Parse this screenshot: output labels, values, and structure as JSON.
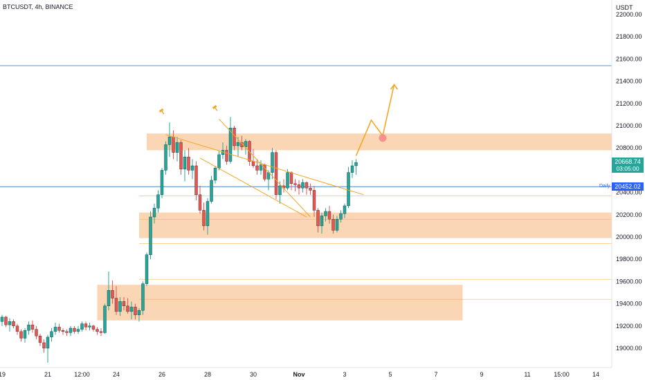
{
  "symbol_title": "BTCUSDT, 4h, BINANCE",
  "currency": "USDT",
  "current_price": {
    "value": "20668.74",
    "countdown": "03:05:00",
    "color": "#26a69a"
  },
  "daily_level": {
    "value": "20452.02",
    "label": "Daily",
    "color": "#2962ff"
  },
  "colors": {
    "bull": "#26a69a",
    "bear": "#ef5350",
    "zone_fill": "#f9c89b",
    "drawing": "#f5a623",
    "level_line": "#6a9fd8",
    "target_dot": "#f48b8b"
  },
  "chart_data": {
    "type": "candlestick",
    "timeframe": "4h",
    "y_axis": {
      "ticks": [
        "22000.00",
        "21800.00",
        "21600.00",
        "21400.00",
        "21200.00",
        "21000.00",
        "20800.00",
        "20600.00",
        "20400.00",
        "20200.00",
        "20000.00",
        "19800.00",
        "19600.00",
        "19400.00",
        "19200.00",
        "19000.00"
      ],
      "range": [
        18830,
        22100
      ]
    },
    "x_axis": {
      "tick_labels": [
        {
          "label": "19",
          "bar": 0,
          "bold": false
        },
        {
          "label": "21",
          "bar": 12,
          "bold": false
        },
        {
          "label": "12:00",
          "bar": 21,
          "bold": false
        },
        {
          "label": "24",
          "bar": 30,
          "bold": false
        },
        {
          "label": "26",
          "bar": 42,
          "bold": false
        },
        {
          "label": "28",
          "bar": 54,
          "bold": false
        },
        {
          "label": "30",
          "bar": 66,
          "bold": false
        },
        {
          "label": "Nov",
          "bar": 78,
          "bold": true
        },
        {
          "label": "3",
          "bar": 90,
          "bold": false
        },
        {
          "label": "5",
          "bar": 102,
          "bold": false
        },
        {
          "label": "7",
          "bar": 114,
          "bold": false
        },
        {
          "label": "9",
          "bar": 126,
          "bold": false
        },
        {
          "label": "11",
          "bar": 138,
          "bold": false
        },
        {
          "label": "15:00",
          "bar": 147,
          "bold": false
        },
        {
          "label": "14",
          "bar": 156,
          "bold": false
        }
      ]
    },
    "candles": [
      [
        19240,
        19300,
        19200,
        19280
      ],
      [
        19280,
        19290,
        19190,
        19210
      ],
      [
        19210,
        19270,
        19150,
        19240
      ],
      [
        19240,
        19260,
        19180,
        19200
      ],
      [
        19200,
        19220,
        19120,
        19150
      ],
      [
        19150,
        19170,
        19060,
        19090
      ],
      [
        19090,
        19180,
        19050,
        19160
      ],
      [
        19160,
        19240,
        19120,
        19210
      ],
      [
        19210,
        19250,
        19140,
        19170
      ],
      [
        19170,
        19200,
        19080,
        19110
      ],
      [
        19110,
        19130,
        19020,
        19050
      ],
      [
        19050,
        19080,
        18960,
        19000
      ],
      [
        19000,
        19120,
        18870,
        19100
      ],
      [
        19100,
        19180,
        19060,
        19150
      ],
      [
        19150,
        19230,
        19120,
        19190
      ],
      [
        19190,
        19220,
        19140,
        19160
      ],
      [
        19160,
        19180,
        19120,
        19150
      ],
      [
        19150,
        19170,
        19110,
        19140
      ],
      [
        19140,
        19200,
        19110,
        19180
      ],
      [
        19180,
        19200,
        19130,
        19150
      ],
      [
        19150,
        19200,
        19130,
        19170
      ],
      [
        19170,
        19240,
        19150,
        19220
      ],
      [
        19220,
        19240,
        19160,
        19190
      ],
      [
        19190,
        19230,
        19160,
        19200
      ],
      [
        19200,
        19210,
        19150,
        19170
      ],
      [
        19170,
        19190,
        19120,
        19150
      ],
      [
        19150,
        19180,
        19110,
        19140
      ],
      [
        19140,
        19400,
        19130,
        19380
      ],
      [
        19380,
        19690,
        19340,
        19520
      ],
      [
        19520,
        19610,
        19400,
        19450
      ],
      [
        19450,
        19560,
        19300,
        19330
      ],
      [
        19330,
        19460,
        19290,
        19420
      ],
      [
        19420,
        19460,
        19340,
        19380
      ],
      [
        19380,
        19450,
        19310,
        19330
      ],
      [
        19330,
        19420,
        19260,
        19370
      ],
      [
        19370,
        19400,
        19260,
        19300
      ],
      [
        19300,
        19360,
        19240,
        19340
      ],
      [
        19340,
        19600,
        19300,
        19580
      ],
      [
        19580,
        19860,
        19560,
        19840
      ],
      [
        19840,
        20230,
        19800,
        20180
      ],
      [
        20180,
        20300,
        20120,
        20260
      ],
      [
        20260,
        20420,
        20220,
        20380
      ],
      [
        20380,
        20620,
        20350,
        20600
      ],
      [
        20600,
        20860,
        20560,
        20830
      ],
      [
        20830,
        21030,
        20720,
        20900
      ],
      [
        20900,
        20960,
        20700,
        20760
      ],
      [
        20760,
        20900,
        20680,
        20850
      ],
      [
        20850,
        20870,
        20560,
        20610
      ],
      [
        20610,
        20780,
        20500,
        20720
      ],
      [
        20720,
        20800,
        20560,
        20600
      ],
      [
        20600,
        20700,
        20520,
        20640
      ],
      [
        20640,
        20680,
        20330,
        20380
      ],
      [
        20380,
        20460,
        20210,
        20240
      ],
      [
        20240,
        20310,
        20060,
        20100
      ],
      [
        20100,
        20350,
        20020,
        20320
      ],
      [
        20320,
        20550,
        20300,
        20510
      ],
      [
        20510,
        20640,
        20480,
        20620
      ],
      [
        20620,
        20780,
        20600,
        20740
      ],
      [
        20740,
        20850,
        20700,
        20780
      ],
      [
        20780,
        20820,
        20650,
        20680
      ],
      [
        20680,
        21080,
        20660,
        20980
      ],
      [
        20980,
        21000,
        20780,
        20820
      ],
      [
        20820,
        20900,
        20720,
        20850
      ],
      [
        20850,
        20910,
        20780,
        20810
      ],
      [
        20810,
        20880,
        20740,
        20860
      ],
      [
        20860,
        20870,
        20640,
        20680
      ],
      [
        20680,
        20790,
        20620,
        20640
      ],
      [
        20640,
        20700,
        20560,
        20600
      ],
      [
        20600,
        20690,
        20560,
        20650
      ],
      [
        20650,
        20660,
        20500,
        20520
      ],
      [
        20520,
        20600,
        20420,
        20580
      ],
      [
        20580,
        20800,
        20520,
        20760
      ],
      [
        20760,
        20780,
        20340,
        20380
      ],
      [
        20380,
        20500,
        20300,
        20460
      ],
      [
        20460,
        20520,
        20400,
        20440
      ],
      [
        20440,
        20610,
        20420,
        20580
      ],
      [
        20580,
        20590,
        20420,
        20480
      ],
      [
        20480,
        20520,
        20410,
        20470
      ],
      [
        20470,
        20510,
        20380,
        20440
      ],
      [
        20440,
        20520,
        20400,
        20490
      ],
      [
        20490,
        20500,
        20380,
        20440
      ],
      [
        20440,
        20480,
        20380,
        20420
      ],
      [
        20420,
        20460,
        20180,
        20240
      ],
      [
        20240,
        20260,
        20040,
        20100
      ],
      [
        20100,
        20220,
        20030,
        20190
      ],
      [
        20190,
        20260,
        20140,
        20230
      ],
      [
        20230,
        20280,
        20120,
        20160
      ],
      [
        20160,
        20200,
        20030,
        20060
      ],
      [
        20060,
        20190,
        20040,
        20160
      ],
      [
        20160,
        20240,
        20130,
        20210
      ],
      [
        20210,
        20300,
        20170,
        20280
      ],
      [
        20280,
        20630,
        20260,
        20580
      ],
      [
        20580,
        20690,
        20530,
        20640
      ],
      [
        20640,
        20700,
        20560,
        20670
      ]
    ],
    "zones": [
      {
        "from": 20780,
        "to": 20930,
        "bar_start": 38,
        "bar_end": 173
      },
      {
        "from": 19990,
        "to": 20220,
        "bar_start": 36,
        "bar_end": 173
      },
      {
        "from": 19250,
        "to": 19570,
        "bar_start": 25,
        "bar_end": 121
      }
    ],
    "horizontal_levels": [
      21540,
      20452
    ],
    "dotted_levels": [
      20370,
      20160,
      19940,
      19620,
      19440
    ],
    "trend_channel": {
      "upper": [
        [
          43,
          20920
        ],
        [
          95,
          20380
        ]
      ],
      "lower": [
        [
          52,
          20710
        ],
        [
          80,
          20180
        ]
      ],
      "wedge": [
        [
          57,
          21060
        ],
        [
          81,
          20180
        ]
      ]
    },
    "projection_path": [
      [
        93,
        20730
      ],
      [
        97,
        21050
      ],
      [
        100,
        20910
      ],
      [
        103,
        21370
      ]
    ],
    "target_point": [
      100,
      20890
    ],
    "pin_markers": [
      [
        42,
        21130
      ],
      [
        56,
        21160
      ]
    ]
  }
}
